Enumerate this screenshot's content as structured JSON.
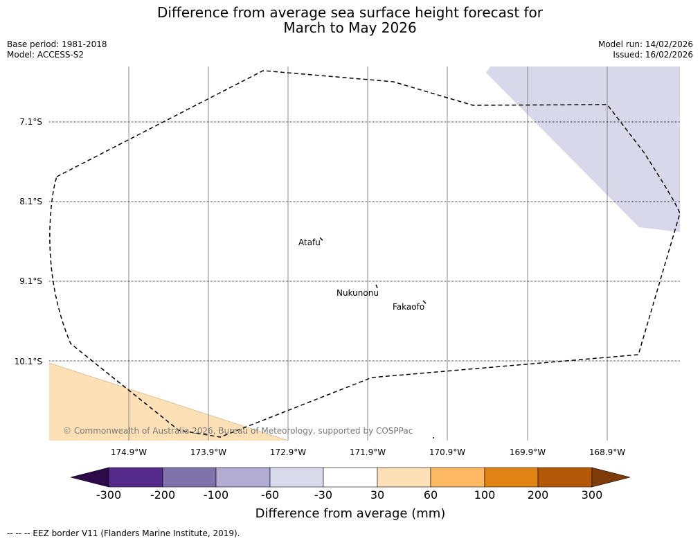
{
  "header": {
    "title_line1": "Difference from average sea surface height forecast for",
    "title_line2": "March to May 2026",
    "base_period": "Base period: 1981-2018",
    "model": "Model: ACCESS-S2",
    "model_run": "Model run: 14/02/2026",
    "issued": "Issued: 16/02/2026"
  },
  "map": {
    "lat_labels": [
      "7.1°S",
      "8.1°S",
      "9.1°S",
      "10.1°S"
    ],
    "lon_labels": [
      "174.9°W",
      "173.9°W",
      "172.9°W",
      "171.9°W",
      "170.9°W",
      "169.9°W",
      "168.9°W"
    ],
    "places": [
      "Atafu",
      "Nukunonu",
      "Fakaofo"
    ],
    "copyright": "© Commonwealth of Australia 2026, Bureau of Meteorology, supported by COSPPac",
    "shading_colors": {
      "negative_30_60": "#d8d8ea",
      "positive_30_60": "#fde0b6"
    }
  },
  "colorbar": {
    "label": "Difference from average (mm)",
    "ticks": [
      "-300",
      "-200",
      "-100",
      "-60",
      "-30",
      "30",
      "60",
      "100",
      "200",
      "300"
    ],
    "colors": [
      "#2d0b4b",
      "#542a8a",
      "#8073ac",
      "#b2abd2",
      "#d8daeb",
      "#ffffff",
      "#fee0b6",
      "#fdb863",
      "#e08214",
      "#b35806",
      "#7f3b08"
    ]
  },
  "legend": {
    "eez_text": "--  --  -- EEZ border V11 (Flanders Marine Institute, 2019)."
  }
}
